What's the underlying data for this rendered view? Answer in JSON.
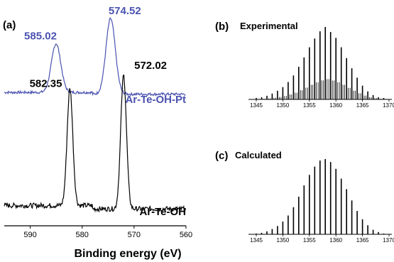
{
  "chart_data": [
    {
      "id": "a",
      "panel_label": "(a)",
      "type": "line",
      "xlabel": "Binding energy (eV)",
      "xlim": [
        595,
        560
      ],
      "xticks": [
        590,
        580,
        570,
        560
      ],
      "series": [
        {
          "name": "Ar-Te-OH-Pt",
          "color": "#4a52b0",
          "baseline": 0.18,
          "peaks": [
            {
              "x": 585.02,
              "label": "585.02",
              "height": 0.55,
              "width": 0.9
            },
            {
              "x": 574.52,
              "label": "574.52",
              "height": 0.85,
              "width": 0.9
            }
          ]
        },
        {
          "name": "Ar-Te-OH",
          "color": "#000000",
          "baseline": 0.0,
          "peaks": [
            {
              "x": 582.35,
              "label": "582.35",
              "height": 0.7,
              "width": 0.55
            },
            {
              "x": 572.02,
              "label": "572.02",
              "height": 0.8,
              "width": 0.55
            }
          ]
        }
      ]
    },
    {
      "id": "b",
      "panel_label": "(b)",
      "title": "Experimental",
      "type": "bar",
      "xlim": [
        1345,
        1370
      ],
      "xticks": [
        1345,
        1350,
        1355,
        1360,
        1365,
        1370
      ],
      "x": [
        1345,
        1346,
        1347,
        1348,
        1349,
        1350,
        1351,
        1352,
        1353,
        1354,
        1355,
        1356,
        1357,
        1358,
        1359,
        1360,
        1361,
        1362,
        1363,
        1364,
        1365,
        1366,
        1367,
        1368,
        1369
      ],
      "values": [
        0.02,
        0.03,
        0.05,
        0.08,
        0.12,
        0.17,
        0.24,
        0.33,
        0.45,
        0.58,
        0.72,
        0.84,
        0.94,
        1.0,
        0.93,
        0.85,
        0.72,
        0.57,
        0.43,
        0.3,
        0.19,
        0.11,
        0.06,
        0.03,
        0.02
      ]
    },
    {
      "id": "c",
      "panel_label": "(c)",
      "title": "Calculated",
      "type": "bar",
      "xlim": [
        1345,
        1370
      ],
      "xticks": [
        1345,
        1350,
        1355,
        1360,
        1365,
        1370
      ],
      "x": [
        1345,
        1346,
        1347,
        1348,
        1349,
        1350,
        1351,
        1352,
        1353,
        1354,
        1355,
        1356,
        1357,
        1358,
        1359,
        1360,
        1361,
        1362,
        1363,
        1364,
        1365,
        1366,
        1367,
        1368,
        1369
      ],
      "values": [
        0.01,
        0.02,
        0.04,
        0.07,
        0.11,
        0.17,
        0.25,
        0.36,
        0.5,
        0.65,
        0.79,
        0.9,
        0.98,
        1.0,
        0.96,
        0.87,
        0.74,
        0.6,
        0.45,
        0.31,
        0.2,
        0.12,
        0.06,
        0.03,
        0.01
      ]
    }
  ]
}
